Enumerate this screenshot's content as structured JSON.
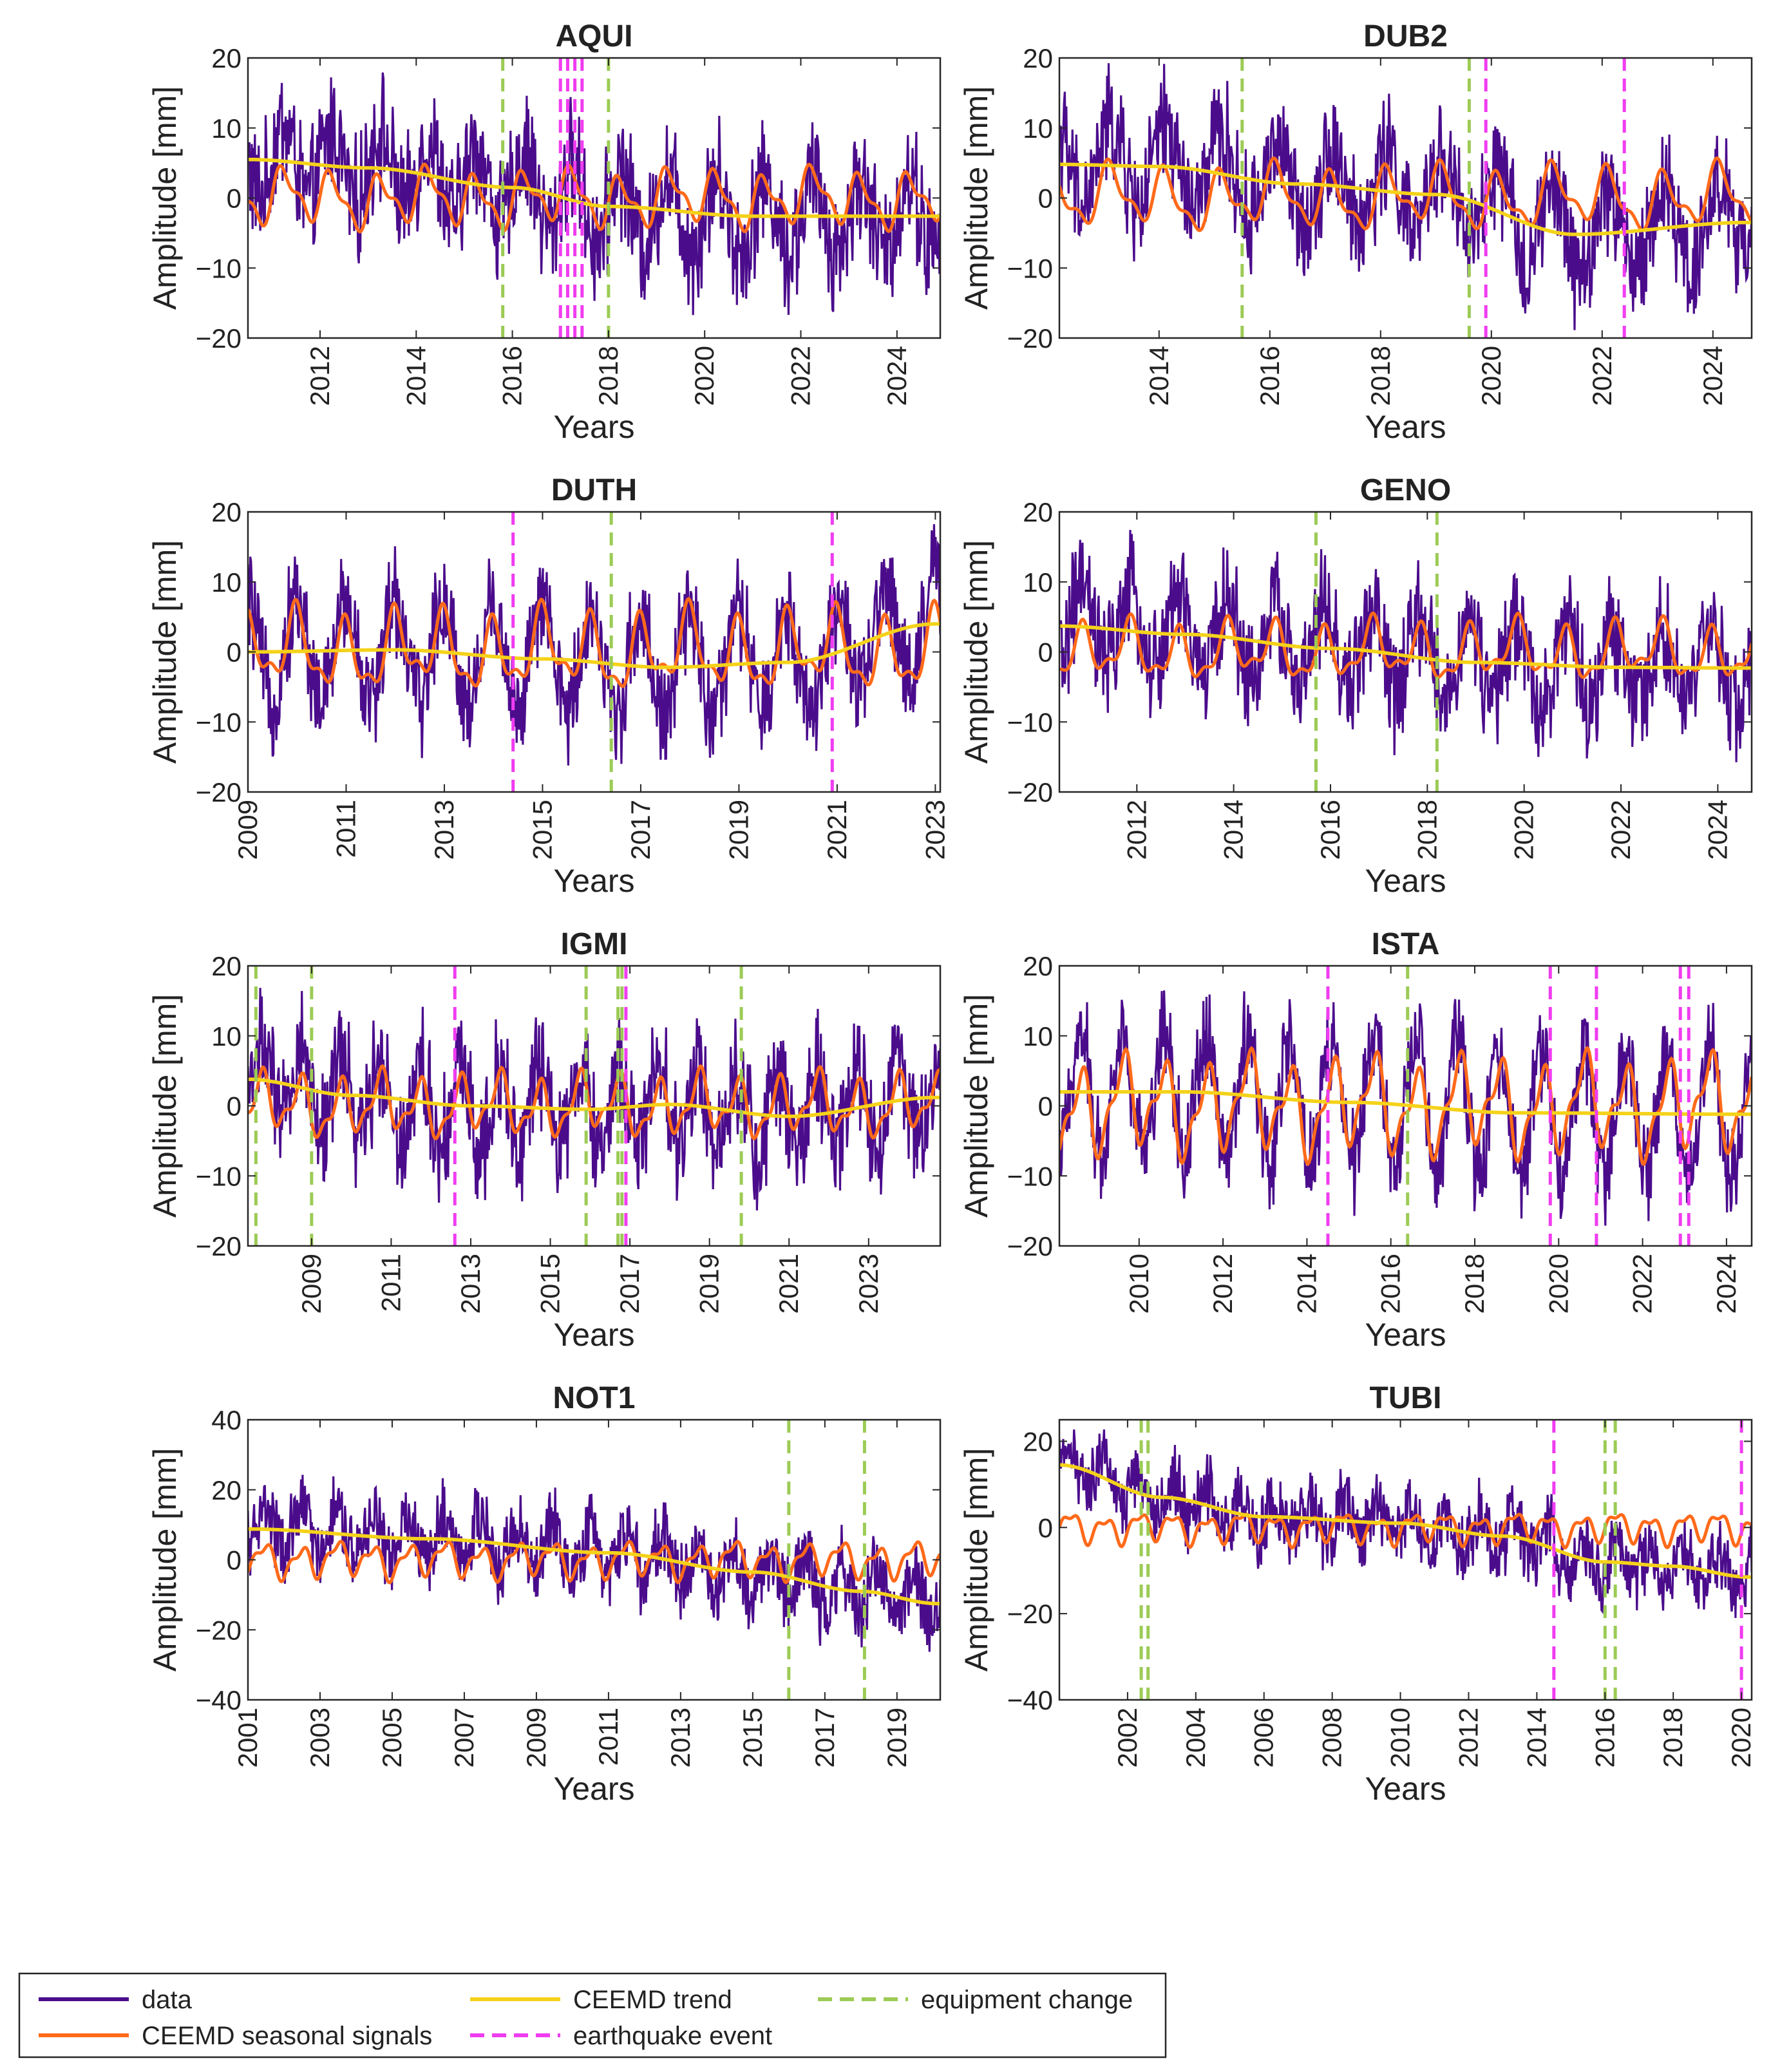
{
  "chart_data": {
    "type": "line",
    "colors": {
      "data": "#4B0C8C",
      "seasonal": "#FF6A1A",
      "trend": "#F5D21A",
      "earthquake": "#F03CF0",
      "equipment": "#9CCB55"
    },
    "legend": {
      "placement": "bottom-left",
      "entries": [
        {
          "key": "data",
          "label": "data",
          "style": "solid"
        },
        {
          "key": "seasonal",
          "label": "CEEMD seasonal signals",
          "style": "solid"
        },
        {
          "key": "trend",
          "label": "CEEMD trend",
          "style": "solid"
        },
        {
          "key": "earthquake",
          "label": "earthquake event",
          "style": "dashed"
        },
        {
          "key": "equipment",
          "label": "equipment change",
          "style": "dashed"
        }
      ]
    },
    "panels": [
      {
        "title": "AQUI",
        "xlabel": "Years",
        "ylabel": "Amplitude [mm]",
        "xlim": [
          2010.5,
          2024.9
        ],
        "ylim": [
          -20,
          20
        ],
        "xticks": [
          "2012",
          "2014",
          "2016",
          "2018",
          "2020",
          "2022",
          "2024"
        ],
        "yticks": [
          "20",
          "10",
          "0",
          "−10",
          "−20"
        ],
        "trend": [
          [
            2010.5,
            5.5
          ],
          [
            2013,
            4.3
          ],
          [
            2016,
            1.5
          ],
          [
            2018,
            -1.2
          ],
          [
            2021,
            -2.6
          ],
          [
            2024.8,
            -2.6
          ]
        ],
        "earthquakes": [
          2017.0,
          2017.15,
          2017.3,
          2017.45
        ],
        "equipment": [
          2015.8,
          2018.0
        ],
        "seasonal_amp": 3.2,
        "noise": 7.5
      },
      {
        "title": "DUB2",
        "xlabel": "Years",
        "ylabel": "Amplitude [mm]",
        "xlim": [
          2012.2,
          2024.7
        ],
        "ylim": [
          -20,
          20
        ],
        "xticks": [
          "2014",
          "2016",
          "2018",
          "2020",
          "2022",
          "2024"
        ],
        "yticks": [
          "20",
          "10",
          "0",
          "−10",
          "−20"
        ],
        "trend": [
          [
            2012.2,
            4.8
          ],
          [
            2014,
            4.5
          ],
          [
            2016.5,
            2.0
          ],
          [
            2019,
            0.5
          ],
          [
            2021.5,
            -5.2
          ],
          [
            2024.6,
            -3.5
          ]
        ],
        "earthquakes": [
          2019.9,
          2022.4
        ],
        "equipment": [
          2015.5,
          2019.6
        ],
        "seasonal_amp": 3.5,
        "noise": 7.0
      },
      {
        "title": "DUTH",
        "xlabel": "Years",
        "ylabel": "Amplitude [mm]",
        "xlim": [
          2009.0,
          2023.1
        ],
        "ylim": [
          -20,
          20
        ],
        "xticks": [
          "2009",
          "2011",
          "2013",
          "2015",
          "2017",
          "2019",
          "2021",
          "2023"
        ],
        "yticks": [
          "20",
          "10",
          "0",
          "−10",
          "−20"
        ],
        "trend": [
          [
            2009,
            0.0
          ],
          [
            2012,
            0.3
          ],
          [
            2015,
            -1.0
          ],
          [
            2017.5,
            -2.2
          ],
          [
            2020,
            -1.5
          ],
          [
            2023,
            4.0
          ]
        ],
        "earthquakes": [
          2014.4,
          2020.9
        ],
        "equipment": [
          2016.4
        ],
        "seasonal_amp": 4.5,
        "noise": 6.5
      },
      {
        "title": "GENO",
        "xlabel": "Years",
        "ylabel": "Amplitude [mm]",
        "xlim": [
          2010.4,
          2024.7
        ],
        "ylim": [
          -20,
          20
        ],
        "xticks": [
          "2012",
          "2014",
          "2016",
          "2018",
          "2020",
          "2022",
          "2024"
        ],
        "yticks": [
          "20",
          "10",
          "0",
          "−10",
          "−20"
        ],
        "trend": [
          [
            2010.4,
            3.7
          ],
          [
            2013,
            2.5
          ],
          [
            2016,
            0.5
          ],
          [
            2019,
            -1.5
          ],
          [
            2022,
            -2.2
          ],
          [
            2024.6,
            -2.3
          ]
        ],
        "earthquakes": [],
        "equipment": [
          2015.7,
          2018.2
        ],
        "seasonal_amp": 3.3,
        "noise": 7.0
      },
      {
        "title": "IGMI",
        "xlabel": "Years",
        "ylabel": "Amplitude [mm]",
        "xlim": [
          2007.4,
          2024.8
        ],
        "ylim": [
          -20,
          20
        ],
        "xticks": [
          "2009",
          "2011",
          "2013",
          "2015",
          "2017",
          "2019",
          "2021",
          "2023"
        ],
        "yticks": [
          "20",
          "10",
          "0",
          "−10",
          "−20"
        ],
        "trend": [
          [
            2007.4,
            3.8
          ],
          [
            2010,
            1.5
          ],
          [
            2013,
            0.0
          ],
          [
            2016,
            -0.5
          ],
          [
            2018,
            0.2
          ],
          [
            2021,
            -1.5
          ],
          [
            2024.7,
            1.2
          ]
        ],
        "earthquakes": [
          2012.6,
          2016.9
        ],
        "equipment": [
          2007.6,
          2009.0,
          2015.9,
          2016.7,
          2016.8,
          2019.8
        ],
        "seasonal_amp": 3.5,
        "noise": 7.0
      },
      {
        "title": "ISTA",
        "xlabel": "Years",
        "ylabel": "Amplitude [mm]",
        "xlim": [
          2008.1,
          2024.6
        ],
        "ylim": [
          -20,
          20
        ],
        "xticks": [
          "2010",
          "2012",
          "2014",
          "2016",
          "2018",
          "2020",
          "2022",
          "2024"
        ],
        "yticks": [
          "20",
          "10",
          "0",
          "−10",
          "−20"
        ],
        "trend": [
          [
            2008.1,
            2.0
          ],
          [
            2011,
            2.0
          ],
          [
            2015,
            0.5
          ],
          [
            2019,
            -1.0
          ],
          [
            2024.5,
            -1.2
          ]
        ],
        "earthquakes": [
          2014.5,
          2019.8,
          2020.9,
          2022.9,
          2023.1
        ],
        "equipment": [
          2016.4
        ],
        "seasonal_amp": 5.5,
        "noise": 6.0
      },
      {
        "title": "NOT1",
        "xlabel": "Years",
        "ylabel": "Amplitude [mm]",
        "xlim": [
          2001.0,
          2020.2
        ],
        "ylim": [
          -40,
          40
        ],
        "xticks": [
          "2001",
          "2003",
          "2005",
          "2007",
          "2009",
          "2011",
          "2013",
          "2015",
          "2017",
          "2019"
        ],
        "yticks": [
          "40",
          "20",
          "0",
          "−20",
          "−40"
        ],
        "trend": [
          [
            2001,
            8.8
          ],
          [
            2006,
            6.0
          ],
          [
            2011,
            2.0
          ],
          [
            2015,
            -3.5
          ],
          [
            2018,
            -9.0
          ],
          [
            2020.1,
            -12.5
          ]
        ],
        "earthquakes": [],
        "equipment": [
          2016.0,
          2018.1
        ],
        "seasonal_amp": 4.0,
        "noise": 9.0
      },
      {
        "title": "TUBI",
        "xlabel": "Years",
        "ylabel": "Amplitude [mm]",
        "xlim": [
          2000.0,
          2020.3
        ],
        "ylim": [
          -40,
          25
        ],
        "xticks": [
          "2002",
          "2004",
          "2006",
          "2008",
          "2010",
          "2012",
          "2014",
          "2016",
          "2018",
          "2020"
        ],
        "yticks": [
          "20",
          "0",
          "−20",
          "−40"
        ],
        "trend": [
          [
            2000,
            14.5
          ],
          [
            2003,
            7.0
          ],
          [
            2006,
            2.5
          ],
          [
            2010,
            1.0
          ],
          [
            2013,
            -2.0
          ],
          [
            2016,
            -8.0
          ],
          [
            2018,
            -9.0
          ],
          [
            2020.2,
            -11.5
          ]
        ],
        "earthquakes": [
          2014.5,
          2020.0
        ],
        "equipment": [
          2002.4,
          2002.6,
          2016.0,
          2016.3
        ],
        "seasonal_amp": 2.8,
        "noise": 7.0
      }
    ]
  }
}
